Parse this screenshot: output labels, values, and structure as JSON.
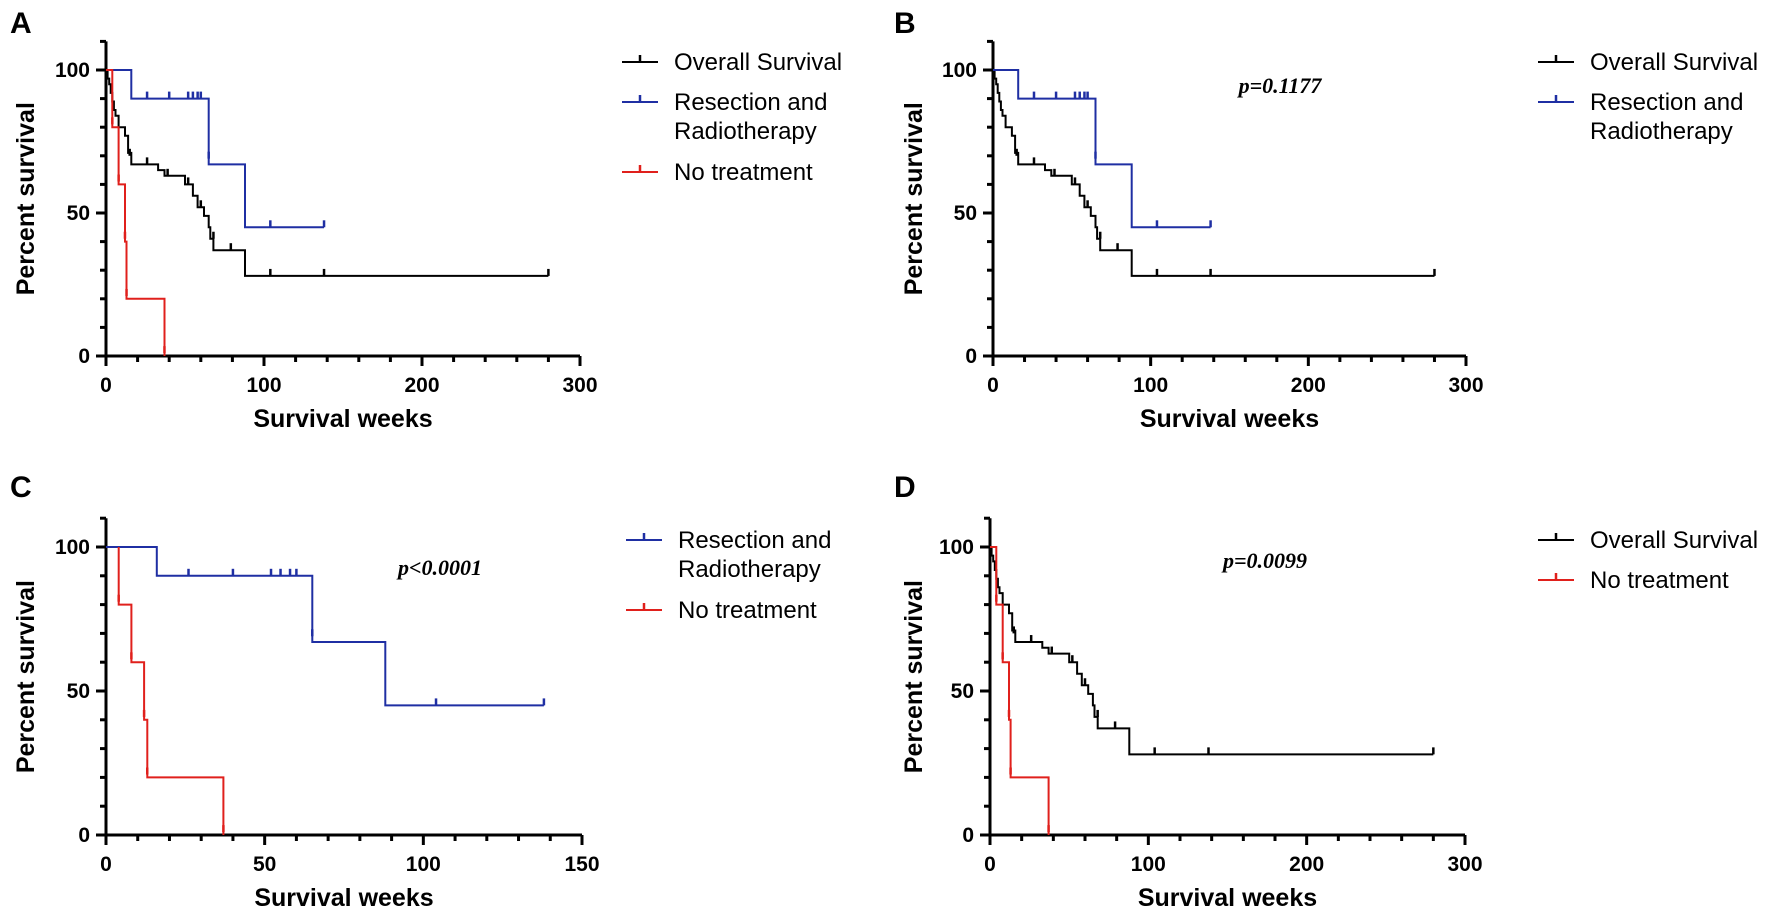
{
  "figure": {
    "panel_count": 4
  },
  "chart_data": [
    {
      "panel": "A",
      "type": "line",
      "subtype": "kaplan-meier",
      "title": "",
      "xlabel": "Survival weeks",
      "ylabel": "Percent survival",
      "xlim": [
        0,
        300
      ],
      "ylim": [
        0,
        110
      ],
      "xticks": [
        0,
        100,
        200,
        300
      ],
      "yticks": [
        0,
        50,
        100
      ],
      "pvalue": "",
      "legend": [
        "Overall Survival",
        "Resection and\nRadiotherapy",
        "No treatment"
      ],
      "series": [
        {
          "name": "Overall Survival",
          "color": "#000000",
          "steps": [
            [
              0,
              100
            ],
            [
              1,
              97
            ],
            [
              2,
              95
            ],
            [
              3,
              92
            ],
            [
              4,
              89
            ],
            [
              5,
              86
            ],
            [
              6,
              84
            ],
            [
              8,
              80
            ],
            [
              12,
              77
            ],
            [
              14,
              71
            ],
            [
              16,
              67
            ],
            [
              33,
              65
            ],
            [
              37,
              63
            ],
            [
              50,
              60
            ],
            [
              55,
              56
            ],
            [
              58,
              52
            ],
            [
              62,
              49
            ],
            [
              65,
              45
            ],
            [
              66,
              41
            ],
            [
              68,
              37
            ],
            [
              88,
              28
            ],
            [
              280,
              28
            ]
          ],
          "censored": [
            [
              15,
              70
            ],
            [
              26,
              67
            ],
            [
              39,
              63
            ],
            [
              52,
              60
            ],
            [
              60,
              52
            ],
            [
              68,
              41
            ],
            [
              79,
              37
            ],
            [
              104,
              28
            ],
            [
              138,
              28
            ],
            [
              280,
              28
            ]
          ]
        },
        {
          "name": "Resection and Radiotherapy",
          "color": "#1f2fa3",
          "steps": [
            [
              0,
              100
            ],
            [
              16,
              90
            ],
            [
              65,
              67
            ],
            [
              88,
              45
            ],
            [
              138,
              45
            ]
          ],
          "censored": [
            [
              26,
              90
            ],
            [
              40,
              90
            ],
            [
              52,
              90
            ],
            [
              55,
              90
            ],
            [
              58,
              90
            ],
            [
              60,
              90
            ],
            [
              65,
              69
            ],
            [
              104,
              45
            ],
            [
              138,
              45
            ]
          ]
        },
        {
          "name": "No treatment",
          "color": "#e0201c",
          "steps": [
            [
              0,
              100
            ],
            [
              4,
              80
            ],
            [
              8,
              60
            ],
            [
              12,
              40
            ],
            [
              13,
              20
            ],
            [
              37,
              0
            ]
          ],
          "censored": [
            [
              4,
              81
            ],
            [
              8,
              61
            ],
            [
              12,
              41
            ],
            [
              13,
              21
            ],
            [
              37,
              1
            ]
          ]
        }
      ]
    },
    {
      "panel": "B",
      "type": "line",
      "subtype": "kaplan-meier",
      "title": "",
      "xlabel": "Survival weeks",
      "ylabel": "Percent survival",
      "xlim": [
        0,
        300
      ],
      "ylim": [
        0,
        110
      ],
      "xticks": [
        0,
        100,
        200,
        300
      ],
      "yticks": [
        0,
        50,
        100
      ],
      "pvalue": "p=0.1177",
      "legend": [
        "Overall Survival",
        "Resection and\nRadiotherapy"
      ],
      "series": [
        {
          "name": "Overall Survival",
          "color": "#000000",
          "steps": [
            [
              0,
              100
            ],
            [
              1,
              97
            ],
            [
              2,
              95
            ],
            [
              3,
              92
            ],
            [
              4,
              89
            ],
            [
              5,
              86
            ],
            [
              6,
              84
            ],
            [
              8,
              80
            ],
            [
              12,
              77
            ],
            [
              14,
              71
            ],
            [
              16,
              67
            ],
            [
              33,
              65
            ],
            [
              37,
              63
            ],
            [
              50,
              60
            ],
            [
              55,
              56
            ],
            [
              58,
              52
            ],
            [
              62,
              49
            ],
            [
              65,
              45
            ],
            [
              66,
              41
            ],
            [
              68,
              37
            ],
            [
              88,
              28
            ],
            [
              280,
              28
            ]
          ],
          "censored": [
            [
              15,
              70
            ],
            [
              26,
              67
            ],
            [
              39,
              63
            ],
            [
              52,
              60
            ],
            [
              60,
              52
            ],
            [
              68,
              41
            ],
            [
              79,
              37
            ],
            [
              104,
              28
            ],
            [
              138,
              28
            ],
            [
              280,
              28
            ]
          ]
        },
        {
          "name": "Resection and Radiotherapy",
          "color": "#1f2fa3",
          "steps": [
            [
              0,
              100
            ],
            [
              16,
              90
            ],
            [
              65,
              67
            ],
            [
              88,
              45
            ],
            [
              138,
              45
            ]
          ],
          "censored": [
            [
              26,
              90
            ],
            [
              40,
              90
            ],
            [
              52,
              90
            ],
            [
              55,
              90
            ],
            [
              58,
              90
            ],
            [
              60,
              90
            ],
            [
              65,
              69
            ],
            [
              104,
              45
            ],
            [
              138,
              45
            ]
          ]
        }
      ]
    },
    {
      "panel": "C",
      "type": "line",
      "subtype": "kaplan-meier",
      "title": "",
      "xlabel": "Survival weeks",
      "ylabel": "Percent survival",
      "xlim": [
        0,
        150
      ],
      "ylim": [
        0,
        110
      ],
      "xticks": [
        0,
        50,
        100,
        150
      ],
      "yticks": [
        0,
        50,
        100
      ],
      "pvalue": "p<0.0001",
      "legend": [
        "Resection and\nRadiotherapy",
        "No treatment"
      ],
      "series": [
        {
          "name": "Resection and Radiotherapy",
          "color": "#1f2fa3",
          "steps": [
            [
              0,
              100
            ],
            [
              16,
              90
            ],
            [
              65,
              67
            ],
            [
              88,
              45
            ],
            [
              138,
              45
            ]
          ],
          "censored": [
            [
              26,
              90
            ],
            [
              40,
              90
            ],
            [
              52,
              90
            ],
            [
              55,
              90
            ],
            [
              58,
              90
            ],
            [
              60,
              90
            ],
            [
              65,
              69
            ],
            [
              104,
              45
            ],
            [
              138,
              45
            ]
          ]
        },
        {
          "name": "No treatment",
          "color": "#e0201c",
          "steps": [
            [
              4,
              100
            ],
            [
              4,
              80
            ],
            [
              8,
              60
            ],
            [
              12,
              40
            ],
            [
              13,
              20
            ],
            [
              37,
              0
            ]
          ],
          "censored": [
            [
              4,
              81
            ],
            [
              8,
              61
            ],
            [
              12,
              41
            ],
            [
              13,
              21
            ],
            [
              37,
              1
            ]
          ]
        }
      ]
    },
    {
      "panel": "D",
      "type": "line",
      "subtype": "kaplan-meier",
      "title": "",
      "xlabel": "Survival weeks",
      "ylabel": "Percent survival",
      "xlim": [
        0,
        300
      ],
      "ylim": [
        0,
        110
      ],
      "xticks": [
        0,
        100,
        200,
        300
      ],
      "yticks": [
        0,
        50,
        100
      ],
      "pvalue": "p=0.0099",
      "legend": [
        "Overall Survival",
        "No treatment"
      ],
      "series": [
        {
          "name": "Overall Survival",
          "color": "#000000",
          "steps": [
            [
              0,
              100
            ],
            [
              1,
              97
            ],
            [
              2,
              95
            ],
            [
              3,
              92
            ],
            [
              4,
              89
            ],
            [
              5,
              86
            ],
            [
              6,
              84
            ],
            [
              8,
              80
            ],
            [
              12,
              77
            ],
            [
              14,
              71
            ],
            [
              16,
              67
            ],
            [
              33,
              65
            ],
            [
              37,
              63
            ],
            [
              50,
              60
            ],
            [
              55,
              56
            ],
            [
              58,
              52
            ],
            [
              62,
              49
            ],
            [
              65,
              45
            ],
            [
              66,
              41
            ],
            [
              68,
              37
            ],
            [
              88,
              28
            ],
            [
              280,
              28
            ]
          ],
          "censored": [
            [
              15,
              70
            ],
            [
              26,
              67
            ],
            [
              39,
              63
            ],
            [
              52,
              60
            ],
            [
              60,
              52
            ],
            [
              68,
              41
            ],
            [
              79,
              37
            ],
            [
              104,
              28
            ],
            [
              138,
              28
            ],
            [
              280,
              28
            ]
          ]
        },
        {
          "name": "No treatment",
          "color": "#e0201c",
          "steps": [
            [
              0,
              100
            ],
            [
              4,
              80
            ],
            [
              8,
              60
            ],
            [
              12,
              40
            ],
            [
              13,
              20
            ],
            [
              37,
              0
            ]
          ],
          "censored": [
            [
              4,
              81
            ],
            [
              8,
              61
            ],
            [
              12,
              41
            ],
            [
              13,
              21
            ],
            [
              37,
              1
            ]
          ]
        }
      ]
    }
  ]
}
